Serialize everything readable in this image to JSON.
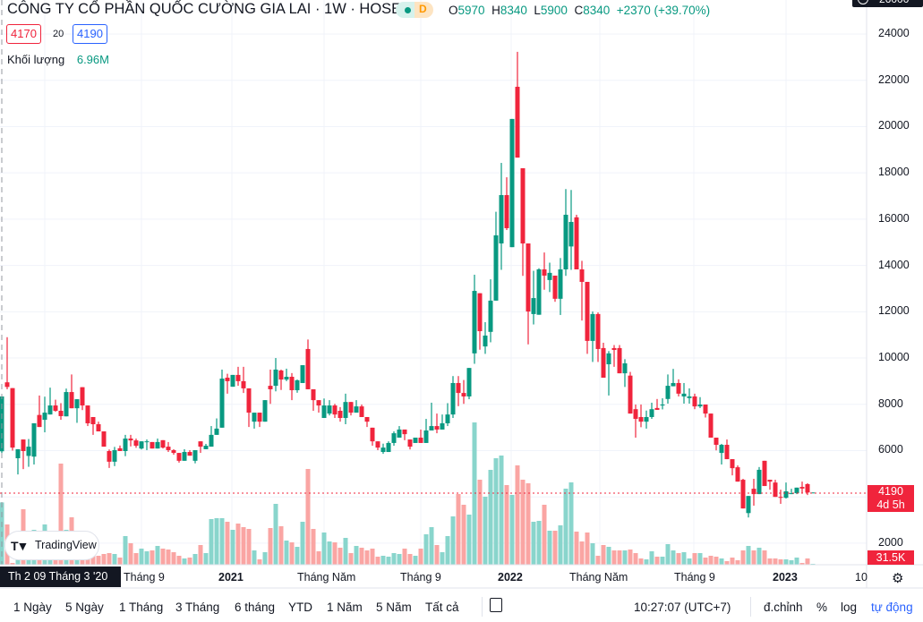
{
  "header": {
    "title": "CÔNG TY CỔ PHẦN QUỐC CƯỜNG GIA LAI · 1W · HOSE",
    "status_badge": "D",
    "ohlc": {
      "o_label": "O",
      "o": "5970",
      "h_label": "H",
      "h": "8340",
      "l_label": "L",
      "l": "5900",
      "c_label": "C",
      "c": "8340",
      "change": "+2370 (+39.70%)"
    },
    "bid": "4170",
    "spread": "20",
    "ask": "4190",
    "volume_label": "Khối lượng",
    "volume_value": "6.96M"
  },
  "price_axis": {
    "labels": [
      "24000",
      "22000",
      "20000",
      "18000",
      "16000",
      "14000",
      "12000",
      "10000",
      "8000",
      "6000",
      "2000"
    ],
    "top_partial": "26000",
    "current_price": "4190",
    "countdown": "4d 5h",
    "current_volume": "31.5K"
  },
  "time_axis": {
    "labels": [
      "Tháng 9",
      "2021",
      "Tháng Năm",
      "Tháng 9",
      "2022",
      "Tháng Năm",
      "Tháng 9",
      "2023"
    ],
    "crosshair_label": "Th 2 09 Tháng 3 '20",
    "right_label": "10"
  },
  "watermark": "TradingView",
  "toolbar": {
    "ranges": [
      "1 Ngày",
      "5 Ngày",
      "1 Tháng",
      "3 Tháng",
      "6 tháng",
      "YTD",
      "1 Năm",
      "5 Năm",
      "Tất cả"
    ],
    "time": "10:27:07 (UTC+7)",
    "adjust": "đ.chỉnh",
    "percent": "%",
    "log": "log",
    "auto": "tự động"
  },
  "colors": {
    "up": "#089981",
    "down": "#f0243c",
    "vol_up": "#89d5cc",
    "vol_down": "#faa5a3",
    "accent": "#2962ff"
  },
  "chart_data": {
    "type": "candlestick",
    "interval": "1W",
    "ylim": [
      2000,
      24000
    ],
    "volume_unit": "M",
    "grid": true,
    "columns": [
      "date",
      "open",
      "high",
      "low",
      "close",
      "volume"
    ],
    "candles": [
      [
        "2020-03-09",
        5970,
        8340,
        5900,
        8340,
        6.96
      ],
      [
        "2020-03-16",
        8950,
        10900,
        8650,
        8750,
        4.5
      ],
      [
        "2020-03-23",
        8700,
        8700,
        6000,
        6130,
        0.2
      ],
      [
        "2020-03-30",
        5670,
        6060,
        4970,
        6060,
        1.0
      ],
      [
        "2020-04-06",
        6480,
        6480,
        5200,
        5980,
        6.2
      ],
      [
        "2020-04-13",
        5770,
        6500,
        5300,
        6170,
        1.5
      ],
      [
        "2020-04-20",
        5740,
        7180,
        5400,
        7180,
        3.9
      ],
      [
        "2020-04-27",
        7540,
        8380,
        7020,
        7020,
        1.5
      ],
      [
        "2020-05-04",
        7330,
        8330,
        6790,
        7640,
        4.5
      ],
      [
        "2020-05-11",
        7560,
        8720,
        7560,
        7950,
        1.5
      ],
      [
        "2020-05-18",
        7950,
        8200,
        7680,
        7720,
        1.5
      ],
      [
        "2020-05-25",
        7720,
        8050,
        7330,
        7490,
        11.3
      ],
      [
        "2020-06-01",
        7480,
        8680,
        7480,
        8530,
        3.9
      ],
      [
        "2020-06-08",
        8530,
        9290,
        7830,
        7830,
        5.3
      ],
      [
        "2020-06-15",
        7830,
        8220,
        7200,
        8220,
        1.5
      ],
      [
        "2020-06-22",
        8740,
        8740,
        7750,
        7950,
        1.5
      ],
      [
        "2020-06-29",
        7950,
        7950,
        7060,
        7180,
        1.4
      ],
      [
        "2020-07-06",
        7450,
        7450,
        6680,
        7140,
        1.1
      ],
      [
        "2020-07-13",
        7140,
        7250,
        6830,
        6830,
        1.0
      ],
      [
        "2020-07-20",
        6830,
        6830,
        6170,
        6170,
        1.2
      ],
      [
        "2020-07-27",
        5980,
        6050,
        5250,
        5520,
        1.3
      ],
      [
        "2020-08-03",
        5520,
        6160,
        5330,
        6020,
        1.2
      ],
      [
        "2020-08-10",
        6100,
        6220,
        5980,
        5980,
        0.8
      ],
      [
        "2020-08-17",
        5980,
        6680,
        5760,
        6520,
        3.2
      ],
      [
        "2020-08-24",
        6520,
        6680,
        6180,
        6440,
        2.4
      ],
      [
        "2020-08-31",
        6440,
        6520,
        6120,
        6210,
        1.3
      ],
      [
        "2020-09-07",
        6090,
        6400,
        6050,
        6400,
        1.8
      ],
      [
        "2020-09-14",
        6370,
        6480,
        6020,
        6400,
        1.5
      ],
      [
        "2020-09-21",
        6370,
        6370,
        6090,
        6090,
        1.6
      ],
      [
        "2020-09-28",
        6090,
        6520,
        6090,
        6370,
        2.1
      ],
      [
        "2020-10-05",
        6450,
        6450,
        6090,
        6130,
        1.8
      ],
      [
        "2020-10-12",
        6170,
        6370,
        5940,
        6020,
        1.7
      ],
      [
        "2020-10-19",
        6020,
        6060,
        5820,
        5900,
        1.4
      ],
      [
        "2020-10-26",
        5900,
        5900,
        5480,
        5560,
        1.0
      ],
      [
        "2020-11-02",
        5560,
        6060,
        5560,
        5940,
        0.7
      ],
      [
        "2020-11-09",
        5940,
        6020,
        5780,
        5780,
        0.8
      ],
      [
        "2020-11-16",
        5560,
        6020,
        5450,
        6020,
        1.2
      ],
      [
        "2020-11-23",
        6400,
        6400,
        5900,
        6170,
        2.2
      ],
      [
        "2020-11-30",
        6060,
        6290,
        6060,
        6210,
        1.3
      ],
      [
        "2020-12-07",
        6170,
        7060,
        6170,
        6680,
        5.1
      ],
      [
        "2020-12-14",
        6680,
        7390,
        6680,
        6950,
        5.2
      ],
      [
        "2020-12-21",
        6990,
        9500,
        6990,
        9110,
        5.2
      ],
      [
        "2020-12-28",
        9150,
        9320,
        8460,
        9000,
        4.8
      ],
      [
        "2021-01-04",
        8760,
        9270,
        8760,
        9270,
        3.9
      ],
      [
        "2021-01-11",
        9270,
        9620,
        8800,
        9000,
        4.6
      ],
      [
        "2021-01-18",
        9000,
        9620,
        8490,
        8690,
        4.2
      ],
      [
        "2021-01-25",
        8690,
        8690,
        7020,
        7640,
        4.0
      ],
      [
        "2021-02-01",
        7250,
        7640,
        6950,
        7640,
        1.6
      ],
      [
        "2021-02-08",
        7640,
        7640,
        7020,
        7250,
        0.6
      ],
      [
        "2021-02-15",
        7250,
        8180,
        7250,
        8180,
        1.4
      ],
      [
        "2021-02-22",
        8800,
        9500,
        8020,
        8650,
        4.1
      ],
      [
        "2021-03-01",
        8800,
        10000,
        8560,
        9500,
        6.8
      ],
      [
        "2021-03-08",
        9460,
        9500,
        8620,
        9070,
        4.3
      ],
      [
        "2021-03-15",
        9070,
        9540,
        9000,
        9190,
        2.7
      ],
      [
        "2021-03-22",
        9190,
        9350,
        8180,
        8610,
        2.5
      ],
      [
        "2021-03-29",
        8610,
        9070,
        8500,
        9040,
        2.0
      ],
      [
        "2021-04-05",
        8920,
        9690,
        8920,
        9690,
        4.8
      ],
      [
        "2021-04-12",
        10390,
        10800,
        8650,
        8650,
        10.7
      ],
      [
        "2021-04-19",
        8650,
        8650,
        7720,
        8180,
        4.0
      ],
      [
        "2021-04-26",
        8180,
        8180,
        7640,
        7950,
        1.5
      ],
      [
        "2021-05-03",
        7410,
        8250,
        7410,
        7950,
        3.6
      ],
      [
        "2021-05-10",
        7600,
        8180,
        7520,
        7950,
        2.6
      ],
      [
        "2021-05-17",
        7950,
        8020,
        7410,
        7560,
        2.5
      ],
      [
        "2021-05-24",
        7720,
        7880,
        7250,
        7410,
        1.9
      ],
      [
        "2021-05-31",
        7410,
        8460,
        7140,
        8100,
        3.0
      ],
      [
        "2021-06-07",
        8100,
        8100,
        7520,
        7640,
        1.3
      ],
      [
        "2021-06-14",
        7640,
        8180,
        7640,
        7910,
        2.1
      ],
      [
        "2021-06-21",
        7910,
        7990,
        7450,
        7450,
        1.9
      ],
      [
        "2021-06-28",
        7450,
        7450,
        7020,
        7250,
        1.6
      ],
      [
        "2021-07-05",
        6990,
        6990,
        6210,
        6400,
        1.8
      ],
      [
        "2021-07-12",
        6400,
        6400,
        6020,
        6130,
        0.9
      ],
      [
        "2021-07-19",
        5940,
        6300,
        5860,
        6130,
        1.0
      ],
      [
        "2021-07-26",
        5940,
        6400,
        5940,
        6330,
        0.9
      ],
      [
        "2021-08-02",
        6330,
        6830,
        6210,
        6750,
        1.3
      ],
      [
        "2021-08-09",
        6560,
        7060,
        6560,
        6910,
        1.2
      ],
      [
        "2021-08-16",
        6910,
        6910,
        6450,
        6710,
        1.8
      ],
      [
        "2021-08-23",
        6480,
        6480,
        6050,
        6170,
        1.2
      ],
      [
        "2021-08-30",
        6330,
        6560,
        6330,
        6560,
        1.0
      ],
      [
        "2021-09-06",
        6560,
        6910,
        6330,
        6330,
        1.8
      ],
      [
        "2021-09-13",
        6330,
        7370,
        6330,
        6870,
        3.4
      ],
      [
        "2021-09-20",
        6870,
        8070,
        6870,
        7060,
        4.2
      ],
      [
        "2021-09-27",
        7060,
        7600,
        6750,
        6910,
        2.2
      ],
      [
        "2021-10-04",
        6910,
        7560,
        6910,
        7180,
        1.4
      ],
      [
        "2021-10-11",
        7180,
        8050,
        7060,
        7560,
        3.2
      ],
      [
        "2021-10-18",
        7560,
        9220,
        7410,
        8920,
        5.4
      ],
      [
        "2021-10-25",
        8920,
        9220,
        7920,
        8490,
        7.9
      ],
      [
        "2021-11-01",
        8490,
        9050,
        8020,
        8340,
        6.7
      ],
      [
        "2021-11-08",
        8340,
        9570,
        8220,
        9570,
        5.6
      ],
      [
        "2021-11-15",
        10200,
        13600,
        9750,
        12900,
        15.9
      ],
      [
        "2021-11-22",
        12800,
        12800,
        10360,
        11160,
        9.5
      ],
      [
        "2021-11-29",
        10500,
        11550,
        10180,
        10970,
        7.6
      ],
      [
        "2021-12-06",
        11130,
        13400,
        10680,
        12480,
        10.6
      ],
      [
        "2021-12-13",
        12480,
        16320,
        12480,
        15300,
        11.9
      ],
      [
        "2021-12-20",
        14950,
        18430,
        13810,
        17040,
        12.2
      ],
      [
        "2021-12-27",
        17040,
        17810,
        15530,
        15610,
        8.9
      ],
      [
        "2022-01-03",
        14790,
        20330,
        14790,
        20330,
        7.8
      ],
      [
        "2022-01-10",
        21720,
        23230,
        18660,
        18660,
        11.1
      ],
      [
        "2022-01-17",
        18200,
        18200,
        13550,
        14950,
        9.5
      ],
      [
        "2022-01-24",
        14950,
        14950,
        10590,
        12010,
        9.1
      ],
      [
        "2022-01-31",
        11900,
        13770,
        11450,
        12590,
        4.8
      ],
      [
        "2022-02-07",
        11870,
        13880,
        11870,
        13830,
        4.9
      ],
      [
        "2022-02-14",
        13830,
        14560,
        12950,
        13560,
        6.7
      ],
      [
        "2022-02-21",
        13370,
        14120,
        12850,
        13680,
        3.8
      ],
      [
        "2022-02-28",
        13560,
        13560,
        12430,
        12560,
        3.8
      ],
      [
        "2022-03-07",
        12560,
        14320,
        11860,
        13830,
        4.4
      ],
      [
        "2022-03-14",
        13830,
        17300,
        13550,
        16190,
        8.5
      ],
      [
        "2022-03-21",
        14820,
        17260,
        13810,
        15880,
        9.2
      ],
      [
        "2022-03-28",
        16080,
        16190,
        13830,
        13830,
        3.7
      ],
      [
        "2022-04-04",
        13830,
        14200,
        11620,
        13290,
        2.6
      ],
      [
        "2022-04-11",
        13290,
        13290,
        10180,
        10740,
        3.6
      ],
      [
        "2022-04-18",
        10740,
        12010,
        9830,
        11900,
        2.4
      ],
      [
        "2022-04-25",
        11900,
        11970,
        9830,
        10390,
        1.0
      ],
      [
        "2022-05-02",
        10430,
        10660,
        9150,
        9150,
        2.2
      ],
      [
        "2022-05-09",
        9730,
        10300,
        8380,
        10200,
        2.0
      ],
      [
        "2022-05-16",
        10430,
        10560,
        9620,
        10350,
        1.6
      ],
      [
        "2022-05-23",
        10430,
        10560,
        9340,
        9340,
        1.6
      ],
      [
        "2022-05-30",
        9340,
        9950,
        8750,
        9770,
        1.6
      ],
      [
        "2022-06-06",
        9240,
        9400,
        7600,
        7600,
        1.7
      ],
      [
        "2022-06-13",
        7790,
        7990,
        6560,
        7370,
        1.3
      ],
      [
        "2022-06-20",
        7450,
        7990,
        7010,
        7250,
        0.7
      ],
      [
        "2022-06-27",
        7250,
        7730,
        6950,
        7450,
        0.6
      ],
      [
        "2022-07-04",
        7450,
        8070,
        7370,
        7790,
        1.5
      ],
      [
        "2022-07-11",
        7840,
        8230,
        7760,
        7760,
        0.9
      ],
      [
        "2022-07-18",
        7950,
        8260,
        7780,
        7990,
        0.9
      ],
      [
        "2022-07-25",
        8230,
        9290,
        8030,
        8800,
        2.3
      ],
      [
        "2022-08-01",
        8780,
        9530,
        8780,
        8920,
        1.6
      ],
      [
        "2022-08-08",
        8920,
        9080,
        8340,
        8460,
        1.3
      ],
      [
        "2022-08-15",
        8340,
        8920,
        8030,
        8460,
        1.4
      ],
      [
        "2022-08-22",
        8270,
        8690,
        8030,
        8340,
        0.7
      ],
      [
        "2022-08-29",
        8340,
        8460,
        7790,
        7910,
        1.3
      ],
      [
        "2022-09-05",
        7910,
        8310,
        7840,
        7990,
        1.3
      ],
      [
        "2022-09-12",
        7990,
        7990,
        7430,
        7600,
        0.8
      ],
      [
        "2022-09-19",
        7600,
        7600,
        6560,
        6560,
        1.0
      ],
      [
        "2022-09-26",
        6560,
        6560,
        6010,
        6250,
        0.9
      ],
      [
        "2022-10-03",
        5900,
        6290,
        5400,
        6250,
        0.7
      ],
      [
        "2022-10-10",
        6250,
        6480,
        5630,
        5630,
        0.4
      ],
      [
        "2022-10-17",
        5630,
        5630,
        4930,
        5240,
        0.8
      ],
      [
        "2022-10-24",
        5280,
        5360,
        4660,
        4660,
        0.5
      ],
      [
        "2022-10-31",
        4740,
        4780,
        3500,
        3500,
        1.6
      ],
      [
        "2022-11-07",
        3300,
        4040,
        3110,
        4040,
        2.1
      ],
      [
        "2022-11-14",
        4350,
        4780,
        3620,
        4120,
        1.6
      ],
      [
        "2022-11-21",
        4120,
        5290,
        4120,
        5170,
        1.9
      ],
      [
        "2022-11-28",
        5560,
        5560,
        4470,
        4470,
        1.6
      ],
      [
        "2022-12-05",
        4740,
        4740,
        4310,
        4660,
        0.7
      ],
      [
        "2022-12-12",
        4620,
        4740,
        4000,
        4000,
        0.7
      ],
      [
        "2022-12-19",
        4000,
        4310,
        3700,
        3960,
        0.6
      ],
      [
        "2022-12-26",
        3960,
        4620,
        3930,
        4240,
        0.6
      ],
      [
        "2023-01-02",
        4120,
        4350,
        4120,
        4160,
        0.5
      ],
      [
        "2023-01-09",
        4160,
        4400,
        4120,
        4400,
        0.8
      ],
      [
        "2023-01-16",
        4430,
        4660,
        4160,
        4360,
        0.2
      ],
      [
        "2023-01-23",
        4550,
        4590,
        4080,
        4190,
        0.7
      ],
      [
        "2023-01-30",
        4190,
        4190,
        4170,
        4190,
        0.0315
      ]
    ]
  }
}
